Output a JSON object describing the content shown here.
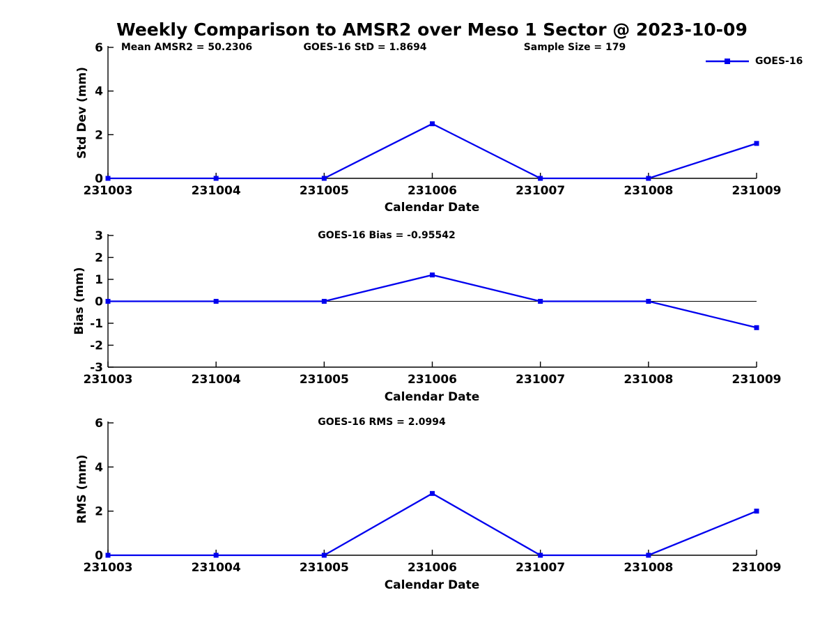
{
  "title": "Weekly Comparison to AMSR2 over Meso 1 Sector @ 2023-10-09",
  "colors": {
    "series": "#0000EE",
    "axis": "#000000",
    "text": "#000000",
    "background": "#FFFFFF"
  },
  "legend": {
    "label": "GOES-16"
  },
  "chart_data": [
    {
      "type": "line",
      "panel": "std-dev",
      "ylabel": "Std Dev (mm)",
      "xlabel": "Calendar Date",
      "ylim": [
        0,
        6
      ],
      "yticks": [
        0,
        2,
        4,
        6
      ],
      "categories": [
        "231003",
        "231004",
        "231005",
        "231006",
        "231007",
        "231008",
        "231009"
      ],
      "series": [
        {
          "name": "GOES-16",
          "values": [
            0,
            0,
            0,
            2.5,
            0,
            0,
            1.6
          ]
        }
      ],
      "zero_line": false,
      "grid": false,
      "legend_position": "top-right",
      "annotations": [
        "Mean AMSR2 = 50.2306",
        "GOES-16 StD = 1.8694",
        "Sample Size = 179"
      ]
    },
    {
      "type": "line",
      "panel": "bias",
      "ylabel": "Bias (mm)",
      "xlabel": "Calendar Date",
      "ylim": [
        -3,
        3
      ],
      "yticks": [
        -3,
        -2,
        -1,
        0,
        1,
        2,
        3
      ],
      "categories": [
        "231003",
        "231004",
        "231005",
        "231006",
        "231007",
        "231008",
        "231009"
      ],
      "series": [
        {
          "name": "GOES-16",
          "values": [
            0,
            0,
            0,
            1.2,
            0,
            0,
            -1.2
          ]
        }
      ],
      "zero_line": true,
      "grid": false,
      "annotations": [
        "GOES-16 Bias  = -0.95542"
      ]
    },
    {
      "type": "line",
      "panel": "rms",
      "ylabel": "RMS (mm)",
      "xlabel": "Calendar Date",
      "ylim": [
        0,
        6
      ],
      "yticks": [
        0,
        2,
        4,
        6
      ],
      "categories": [
        "231003",
        "231004",
        "231005",
        "231006",
        "231007",
        "231008",
        "231009"
      ],
      "series": [
        {
          "name": "GOES-16",
          "values": [
            0,
            0,
            0,
            2.8,
            0,
            0,
            2.0
          ]
        }
      ],
      "zero_line": false,
      "grid": false,
      "annotations": [
        "GOES-16 RMS = 2.0994"
      ]
    }
  ]
}
